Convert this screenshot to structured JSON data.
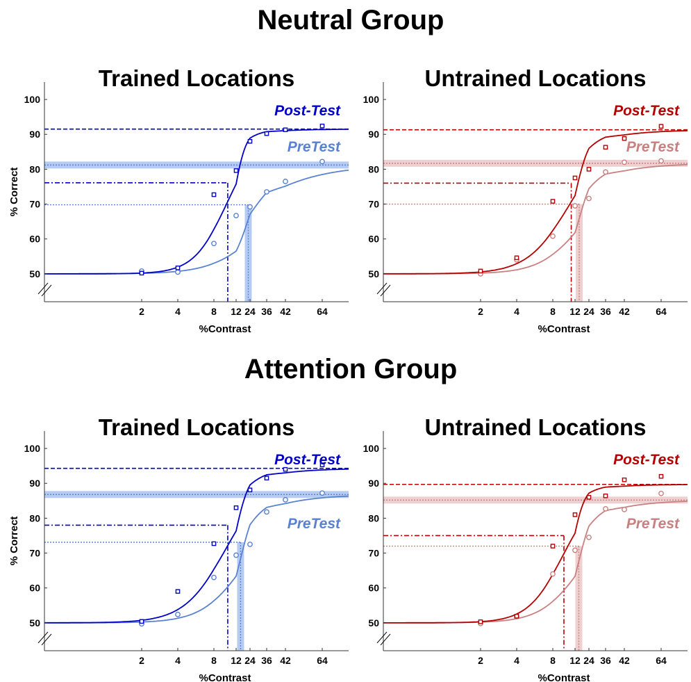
{
  "figure": {
    "group_titles": [
      "Neutral Group",
      "Attention Group"
    ]
  },
  "chart_data": [
    {
      "type": "line",
      "group": "Neutral Group",
      "title": "Trained Locations",
      "xlabel": "%Contrast",
      "ylabel": "% Correct",
      "x_scale": "log",
      "x_ticks": [
        2,
        4,
        8,
        12,
        24,
        36,
        42,
        64
      ],
      "y_ticks": [
        50,
        60,
        70,
        80,
        90,
        100
      ],
      "ylim": [
        42,
        105
      ],
      "grid": false,
      "colors": {
        "post": "#0000c8",
        "pre": "#5a82d2",
        "pre_band": "#a9c2ee"
      },
      "series": [
        {
          "name": "Post-Test",
          "marker": "square",
          "style": "solid",
          "x": [
            2,
            4,
            8,
            12,
            24,
            36,
            42,
            64
          ],
          "y": [
            50.2,
            51.7,
            72.7,
            79.6,
            88.0,
            90.2,
            91.3,
            92.4
          ],
          "fit": {
            "lower": 50,
            "upper": 91.5,
            "threshold_contrast": 10.3,
            "threshold_value": 76.1,
            "slope": 3.2
          }
        },
        {
          "name": "PreTest",
          "marker": "circle",
          "style": "solid",
          "x": [
            2,
            4,
            8,
            12,
            24,
            36,
            42,
            64
          ],
          "y": [
            50.8,
            50.5,
            58.7,
            66.7,
            69.2,
            73.5,
            76.5,
            82.2
          ],
          "fit": {
            "lower": 50,
            "upper": 81.2,
            "threshold_contrast": 22.0,
            "threshold_value": 69.8,
            "slope": 2.2
          }
        }
      ]
    },
    {
      "type": "line",
      "group": "Neutral Group",
      "title": "Untrained Locations",
      "xlabel": "%Contrast",
      "ylabel": "",
      "x_scale": "log",
      "x_ticks": [
        2,
        4,
        8,
        12,
        24,
        36,
        42,
        64
      ],
      "y_ticks": [
        50,
        60,
        70,
        80,
        90,
        100
      ],
      "ylim": [
        42,
        105
      ],
      "grid": false,
      "colors": {
        "post": "#b40000",
        "pre": "#c88080",
        "pre_band": "#ecc8c8"
      },
      "series": [
        {
          "name": "Post-Test",
          "marker": "square",
          "style": "solid",
          "x": [
            2,
            4,
            8,
            12,
            24,
            36,
            42,
            64
          ],
          "y": [
            50.8,
            54.6,
            70.8,
            77.5,
            80.0,
            86.3,
            88.8,
            92.3
          ],
          "fit": {
            "lower": 50,
            "upper": 91.3,
            "threshold_contrast": 11.2,
            "threshold_value": 76.0,
            "slope": 2.5
          }
        },
        {
          "name": "PreTest",
          "marker": "circle",
          "style": "solid",
          "x": [
            2,
            4,
            8,
            12,
            24,
            36,
            42,
            64
          ],
          "y": [
            50.0,
            54.0,
            60.8,
            69.5,
            71.6,
            79.2,
            82.0,
            82.4
          ],
          "fit": {
            "lower": 50,
            "upper": 81.7,
            "threshold_contrast": 14.8,
            "threshold_value": 70.0,
            "slope": 2.5
          }
        }
      ]
    },
    {
      "type": "line",
      "group": "Attention Group",
      "title": "Trained Locations",
      "xlabel": "%Contrast",
      "ylabel": "% Correct",
      "x_scale": "log",
      "x_ticks": [
        2,
        4,
        8,
        12,
        24,
        36,
        42,
        64
      ],
      "y_ticks": [
        50,
        60,
        70,
        80,
        90,
        100
      ],
      "ylim": [
        42,
        105
      ],
      "grid": false,
      "colors": {
        "post": "#0000c8",
        "pre": "#5a82d2",
        "pre_band": "#a9c2ee"
      },
      "series": [
        {
          "name": "Post-Test",
          "marker": "square",
          "style": "solid",
          "x": [
            2,
            4,
            8,
            12,
            24,
            36,
            42,
            64
          ],
          "y": [
            50.4,
            59.0,
            72.7,
            83.0,
            88.1,
            91.5,
            94.0,
            95.3
          ],
          "fit": {
            "lower": 50,
            "upper": 94.3,
            "threshold_contrast": 10.3,
            "threshold_value": 78.0,
            "slope": 2.5
          }
        },
        {
          "name": "PreTest",
          "marker": "circle",
          "style": "solid",
          "x": [
            2,
            4,
            8,
            12,
            24,
            36,
            42,
            64
          ],
          "y": [
            49.7,
            52.4,
            63.0,
            69.4,
            72.5,
            81.8,
            85.3,
            87.2
          ],
          "fit": {
            "lower": 50,
            "upper": 86.8,
            "threshold_contrast": 15.0,
            "threshold_value": 73.1,
            "slope": 2.5
          }
        }
      ]
    },
    {
      "type": "line",
      "group": "Attention Group",
      "title": "Untrained Locations",
      "xlabel": "%Contrast",
      "ylabel": "",
      "x_scale": "log",
      "x_ticks": [
        2,
        4,
        8,
        12,
        24,
        36,
        42,
        64
      ],
      "y_ticks": [
        50,
        60,
        70,
        80,
        90,
        100
      ],
      "ylim": [
        42,
        105
      ],
      "grid": false,
      "colors": {
        "post": "#b40000",
        "pre": "#c88080",
        "pre_band": "#ecc8c8"
      },
      "series": [
        {
          "name": "Post-Test",
          "marker": "square",
          "style": "solid",
          "x": [
            2,
            4,
            8,
            12,
            24,
            36,
            42,
            64
          ],
          "y": [
            50.3,
            51.9,
            72.0,
            81.0,
            86.0,
            86.4,
            91.0,
            92.0
          ],
          "fit": {
            "lower": 50,
            "upper": 89.7,
            "threshold_contrast": 9.8,
            "threshold_value": 75.0,
            "slope": 3.0
          }
        },
        {
          "name": "PreTest",
          "marker": "circle",
          "style": "solid",
          "x": [
            2,
            4,
            8,
            12,
            24,
            36,
            42,
            64
          ],
          "y": [
            49.8,
            51.8,
            64.0,
            70.8,
            74.5,
            82.7,
            82.5,
            87.1
          ],
          "fit": {
            "lower": 50,
            "upper": 85.2,
            "threshold_contrast": 14.5,
            "threshold_value": 72.0,
            "slope": 2.6
          }
        }
      ]
    }
  ]
}
